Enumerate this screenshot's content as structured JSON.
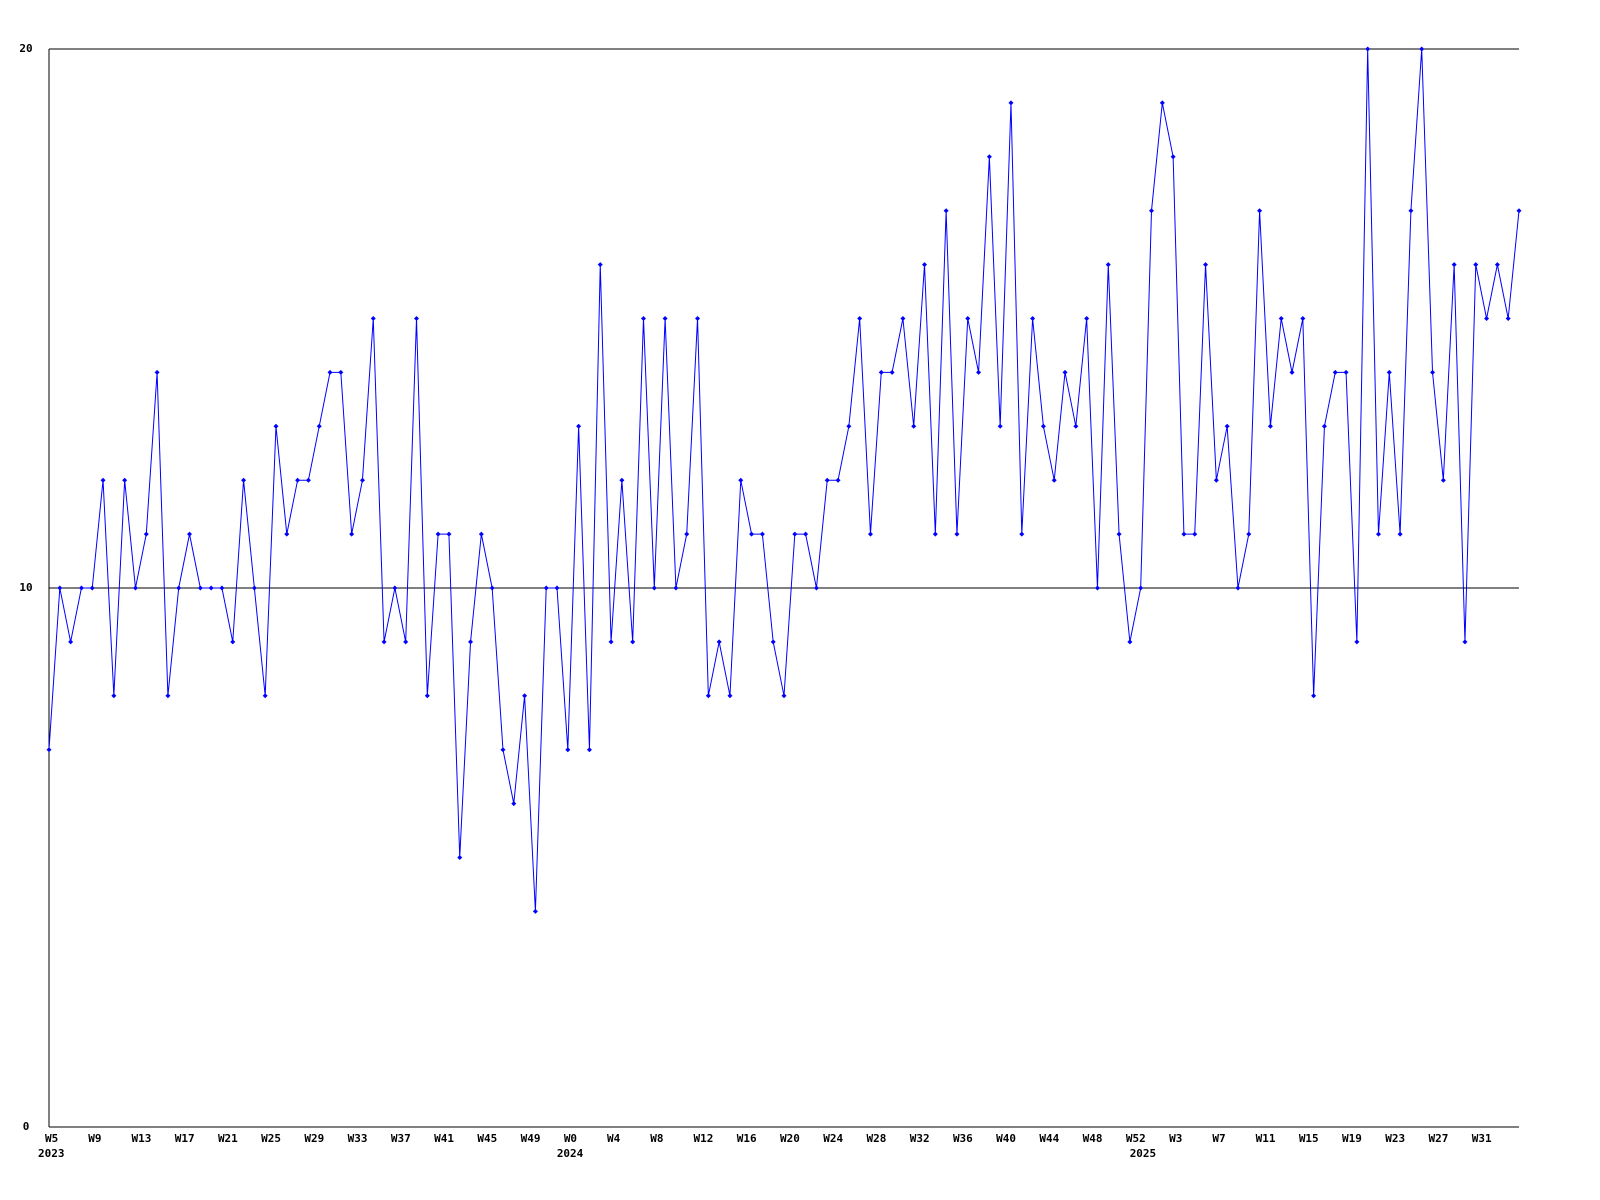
{
  "chart_data": {
    "type": "line",
    "categories": [
      "W5",
      null,
      null,
      null,
      "W9",
      null,
      null,
      null,
      "W13",
      null,
      null,
      null,
      "W17",
      null,
      null,
      null,
      "W21",
      null,
      null,
      null,
      "W25",
      null,
      null,
      null,
      "W29",
      null,
      null,
      null,
      "W33",
      null,
      null,
      null,
      "W37",
      null,
      null,
      null,
      "W41",
      null,
      null,
      null,
      "W45",
      null,
      null,
      null,
      "W49",
      null,
      null,
      null,
      "W0",
      null,
      null,
      null,
      "W4",
      null,
      null,
      null,
      "W8",
      null,
      null,
      null,
      "W12",
      null,
      null,
      null,
      "W16",
      null,
      null,
      null,
      "W20",
      null,
      null,
      null,
      "W24",
      null,
      null,
      null,
      "W28",
      null,
      null,
      null,
      "W32",
      null,
      null,
      null,
      "W36",
      null,
      null,
      null,
      "W40",
      null,
      null,
      null,
      "W44",
      null,
      null,
      null,
      "W48",
      null,
      null,
      null,
      "W52",
      null,
      null,
      null,
      "W3",
      null,
      null,
      null,
      "W7",
      null,
      null,
      null,
      "W11",
      null,
      null,
      null,
      "W15",
      null,
      null,
      null,
      "W19",
      null,
      null,
      null,
      "W23",
      null,
      null,
      null,
      "W27",
      null,
      null,
      null,
      "W31",
      null,
      null,
      null,
      null
    ],
    "x_years": [
      "2023",
      null,
      null,
      null,
      null,
      null,
      null,
      null,
      null,
      null,
      null,
      null,
      null,
      null,
      null,
      null,
      null,
      null,
      null,
      null,
      null,
      null,
      null,
      null,
      null,
      null,
      null,
      null,
      null,
      null,
      null,
      null,
      null,
      null,
      null,
      null,
      null,
      null,
      null,
      null,
      null,
      null,
      null,
      null,
      null,
      null,
      null,
      null,
      "2024",
      null,
      null,
      null,
      null,
      null,
      null,
      null,
      null,
      null,
      null,
      null,
      null,
      null,
      null,
      null,
      null,
      null,
      null,
      null,
      null,
      null,
      null,
      null,
      null,
      null,
      null,
      null,
      null,
      null,
      null,
      null,
      null,
      null,
      null,
      null,
      null,
      null,
      null,
      null,
      null,
      null,
      null,
      null,
      null,
      null,
      null,
      null,
      null,
      null,
      null,
      null,
      null,
      "2025",
      null,
      null,
      null,
      null,
      null,
      null,
      null,
      null,
      null,
      null,
      null,
      null,
      null,
      null,
      null,
      null,
      null,
      null,
      null,
      null,
      null,
      null,
      null,
      null,
      null,
      null,
      null,
      null,
      null,
      null,
      null,
      null,
      null,
      null,
      null
    ],
    "values": [
      7,
      10,
      9,
      10,
      10,
      12,
      8,
      12,
      10,
      11,
      14,
      8,
      10,
      11,
      10,
      10,
      10,
      9,
      12,
      10,
      8,
      13,
      11,
      12,
      12,
      13,
      14,
      14,
      11,
      12,
      15,
      9,
      10,
      9,
      15,
      8,
      11,
      11,
      5,
      9,
      11,
      10,
      7,
      6,
      8,
      4,
      10,
      10,
      7,
      13,
      7,
      16,
      9,
      12,
      9,
      15,
      10,
      15,
      10,
      11,
      15,
      8,
      9,
      8,
      12,
      11,
      11,
      9,
      8,
      11,
      11,
      10,
      12,
      12,
      13,
      15,
      11,
      14,
      14,
      15,
      13,
      16,
      11,
      17,
      11,
      15,
      14,
      18,
      13,
      19,
      11,
      15,
      13,
      12,
      14,
      13,
      15,
      10,
      16,
      11,
      9,
      10,
      17,
      19,
      18,
      11,
      11,
      16,
      12,
      13,
      10,
      11,
      17,
      13,
      15,
      14,
      15,
      8,
      13,
      14,
      14,
      9,
      20,
      11,
      14,
      11,
      17,
      20,
      14,
      12,
      16,
      9,
      16,
      15,
      16,
      15,
      17
    ],
    "color": "#0000ff",
    "ylim": [
      0,
      20
    ],
    "yticks": [
      0,
      10,
      20
    ],
    "grid": true
  }
}
